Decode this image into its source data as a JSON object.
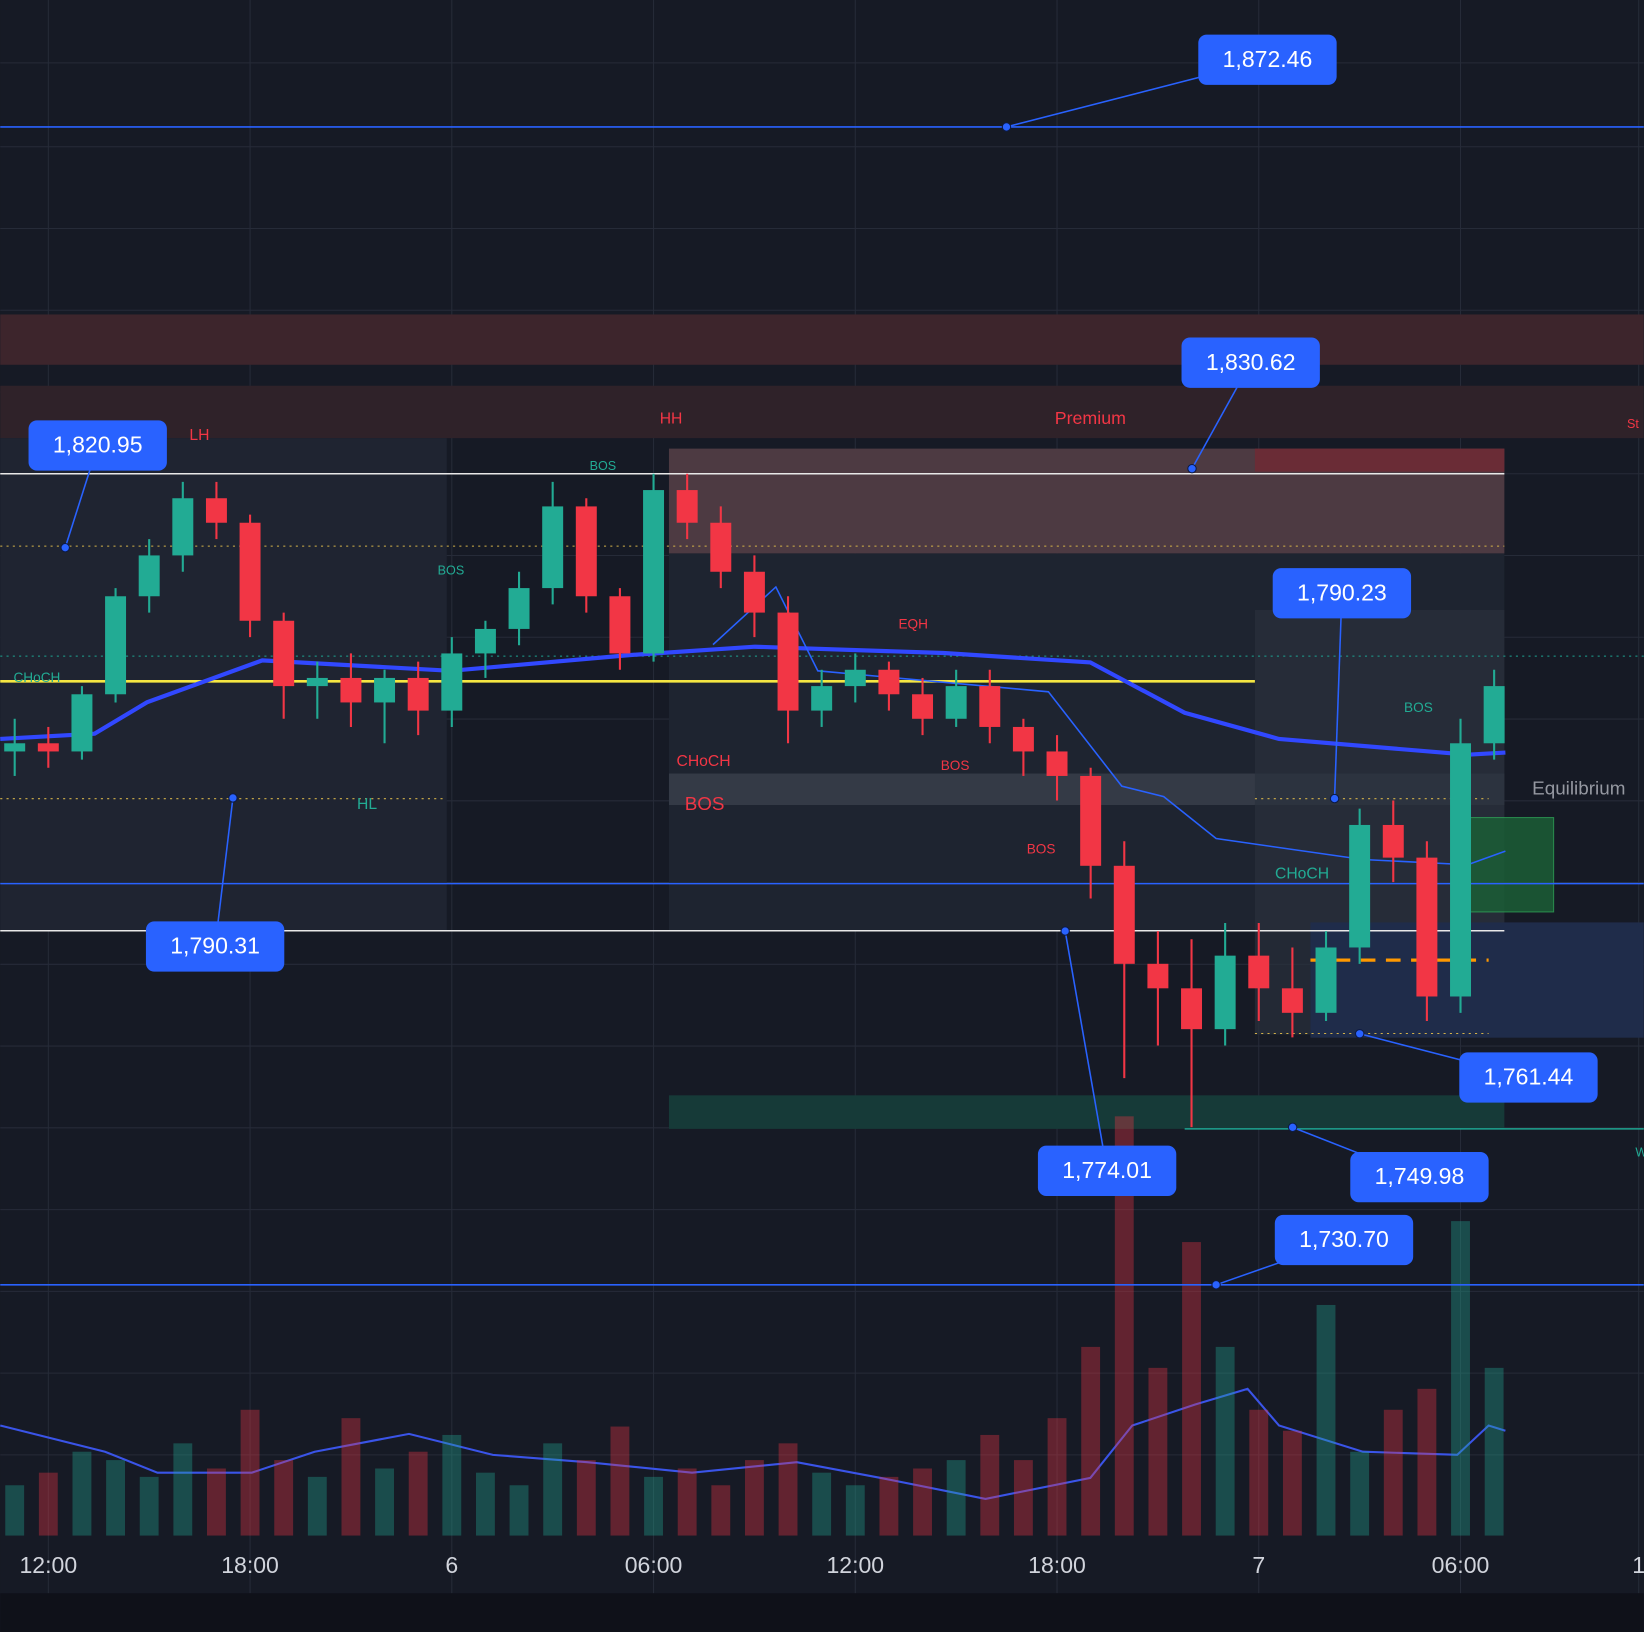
{
  "chart_data": {
    "type": "candlestick",
    "x": [
      11,
      12,
      13,
      14,
      15,
      16,
      17,
      18,
      19,
      20,
      21,
      22,
      23,
      24,
      25,
      26,
      27,
      28,
      29,
      30,
      31,
      32,
      33,
      34,
      35,
      36,
      37,
      38,
      39,
      40,
      41,
      42,
      43,
      44,
      45,
      46,
      47,
      48,
      49,
      50,
      51,
      52,
      53,
      54,
      55
    ],
    "open": [
      1796,
      1797,
      1796,
      1803,
      1815,
      1820,
      1827,
      1824,
      1812,
      1804,
      1805,
      1802,
      1805,
      1801,
      1808,
      1811,
      1816,
      1826,
      1815,
      1808,
      1828,
      1824,
      1818,
      1813,
      1801,
      1804,
      1806,
      1803,
      1800,
      1804,
      1799,
      1796,
      1793,
      1782,
      1770,
      1767,
      1762,
      1771,
      1767,
      1764,
      1772,
      1787,
      1783,
      1766,
      1797
    ],
    "high": [
      1800,
      1799,
      1804,
      1816,
      1822,
      1829,
      1829,
      1825,
      1813,
      1807,
      1808,
      1806,
      1807,
      1810,
      1812,
      1818,
      1829,
      1827,
      1816,
      1830,
      1830,
      1826,
      1820,
      1815,
      1806,
      1808,
      1807,
      1805,
      1806,
      1806,
      1800,
      1798,
      1794,
      1785,
      1774,
      1773,
      1775,
      1775,
      1772,
      1774,
      1789,
      1790,
      1785,
      1800,
      1806
    ],
    "low": [
      1793,
      1794,
      1795,
      1802,
      1813,
      1818,
      1822,
      1810,
      1800,
      1800,
      1799,
      1797,
      1798,
      1799,
      1805,
      1809,
      1814,
      1813,
      1806,
      1807,
      1822,
      1816,
      1810,
      1797,
      1799,
      1802,
      1801,
      1798,
      1799,
      1797,
      1793,
      1790,
      1778,
      1756,
      1760,
      1750,
      1760,
      1763,
      1761,
      1763,
      1770,
      1780,
      1763,
      1764,
      1795
    ],
    "close": [
      1797,
      1796,
      1803,
      1815,
      1820,
      1827,
      1824,
      1812,
      1804,
      1805,
      1802,
      1805,
      1801,
      1808,
      1811,
      1816,
      1826,
      1815,
      1808,
      1828,
      1824,
      1818,
      1813,
      1801,
      1804,
      1806,
      1803,
      1800,
      1804,
      1799,
      1796,
      1793,
      1782,
      1770,
      1767,
      1762,
      1771,
      1767,
      1764,
      1772,
      1787,
      1783,
      1766,
      1797,
      1804
    ],
    "volume": [
      12,
      15,
      20,
      18,
      14,
      22,
      16,
      30,
      18,
      14,
      28,
      16,
      20,
      24,
      15,
      12,
      22,
      18,
      26,
      14,
      16,
      12,
      18,
      22,
      15,
      12,
      14,
      16,
      18,
      24,
      18,
      28,
      45,
      100,
      40,
      70,
      45,
      30,
      25,
      55,
      20,
      30,
      35,
      75,
      40
    ],
    "ylim": [
      1700,
      1888
    ],
    "xlim": [
      10.57,
      59.45
    ],
    "xticks": [
      {
        "value": 12,
        "label": "12:00"
      },
      {
        "value": 18,
        "label": "18:00"
      },
      {
        "value": 24,
        "label": "6"
      },
      {
        "value": 30,
        "label": "06:00"
      },
      {
        "value": 36,
        "label": "12:00"
      },
      {
        "value": 42,
        "label": "18:00"
      },
      {
        "value": 48,
        "label": "7"
      },
      {
        "value": 54,
        "label": "06:00"
      },
      {
        "value": 59.3,
        "label": "1"
      }
    ],
    "up_color": "#22ab94",
    "down_color": "#f23645",
    "price_labels": [
      {
        "value": 1872.46,
        "label": "1,872.46"
      },
      {
        "value": 1830.62,
        "label": "1,830.62"
      },
      {
        "value": 1820.95,
        "label": "1,820.95"
      },
      {
        "value": 1790.31,
        "label": "1,790.31"
      },
      {
        "value": 1790.23,
        "label": "1,790.23"
      },
      {
        "value": 1774.01,
        "label": "1,774.01"
      },
      {
        "value": 1761.44,
        "label": "1,761.44"
      },
      {
        "value": 1749.98,
        "label": "1,749.98"
      },
      {
        "value": 1730.7,
        "label": "1,730.70"
      }
    ],
    "annotations": [
      "LH",
      "HH",
      "Premium",
      "St",
      "HL",
      "BOS",
      "BOS",
      "CHoCH",
      "EQH",
      "CHoCH",
      "BOS",
      "BOS",
      "BOS",
      "CHoCH",
      "BOS",
      "Equilibrium",
      "W"
    ]
  }
}
